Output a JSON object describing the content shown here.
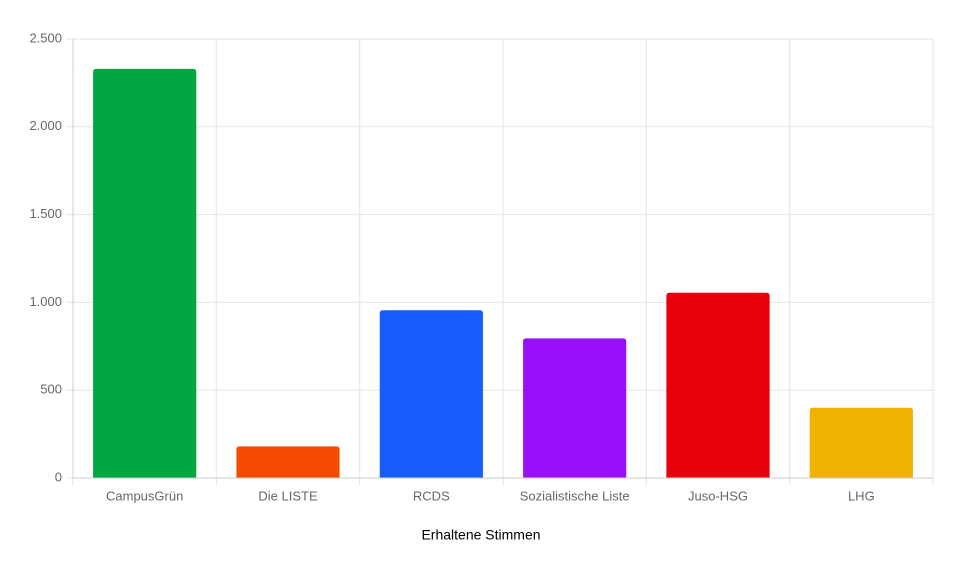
{
  "chart_data": {
    "type": "bar",
    "x_label": "Erhaltene Stimmen",
    "categories": [
      "CampusGrün",
      "Die LISTE",
      "RCDS",
      "Sozialistische Liste",
      "Juso-HSG",
      "LHG"
    ],
    "values": [
      2330,
      180,
      955,
      795,
      1055,
      400
    ],
    "colors": [
      "#00a63f",
      "#f54a00",
      "#165dfc",
      "#9810fa",
      "#e7000b",
      "#f0b100"
    ],
    "ylim": [
      0,
      2500
    ],
    "yticks": [
      0,
      500,
      {
        "value": 1000,
        "label": "1.000"
      },
      {
        "value": 1500,
        "label": "1.500"
      },
      {
        "value": 2000,
        "label": "2.000"
      },
      {
        "value": 2500,
        "label": "2.500"
      }
    ],
    "grid": true
  }
}
